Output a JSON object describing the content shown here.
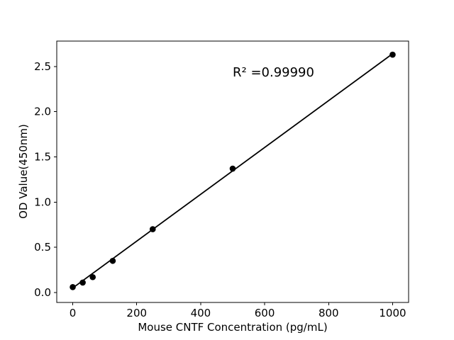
{
  "chart_data": {
    "type": "scatter",
    "title": "",
    "xlabel": "Mouse CNTF Concentration (pg/mL)",
    "ylabel": "OD Value(450nm)",
    "annotation": "R² =0.99990",
    "r_squared": 0.9999,
    "x": [
      0,
      31.2,
      62.5,
      125,
      250,
      500,
      1000
    ],
    "y": [
      0.06,
      0.11,
      0.17,
      0.35,
      0.7,
      1.37,
      2.63
    ],
    "fit_line": {
      "x1": 0,
      "y1": 0.05,
      "x2": 1000,
      "y2": 2.64
    },
    "xticks": [
      0,
      200,
      400,
      600,
      800,
      1000
    ],
    "yticks": [
      "0.0",
      "0.5",
      "1.0",
      "1.5",
      "2.0",
      "2.5"
    ],
    "xlim": [
      -50,
      1050
    ],
    "ylim": [
      -0.11,
      2.78
    ],
    "grid": false,
    "legend": null,
    "marker_color": "#000000",
    "line_color": "#000000",
    "axis_color": "#000000",
    "background": "#ffffff"
  }
}
